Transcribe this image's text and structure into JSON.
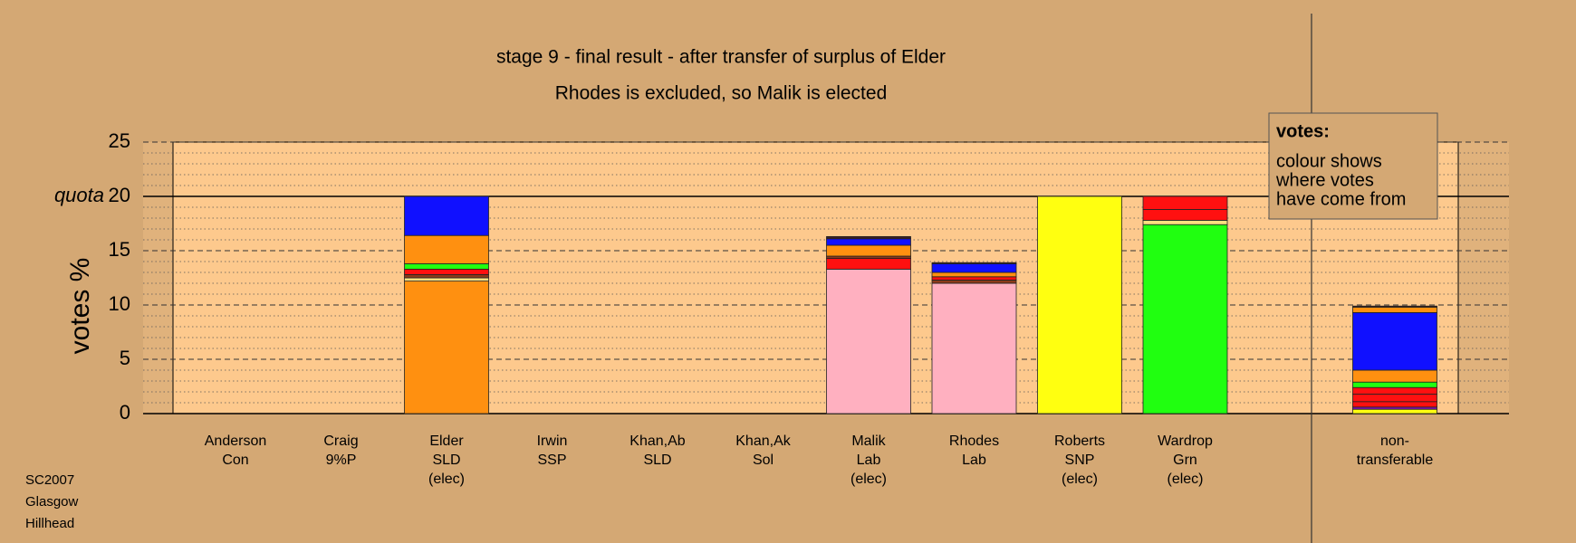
{
  "chart_data": {
    "type": "stacked-bar",
    "title": "stage 9 - final result - after transfer of surplus of Elder",
    "subtitle": "Rhodes is excluded, so Malik is elected",
    "y_label": "votes %",
    "quota_label": "quota",
    "quota": 20,
    "ylim": [
      0,
      25
    ],
    "yticks": [
      0,
      5,
      10,
      15,
      20,
      25
    ],
    "minor_yticks": [
      1,
      2,
      3,
      4,
      6,
      7,
      8,
      9,
      11,
      12,
      13,
      14,
      16,
      17,
      18,
      19,
      21,
      22,
      23,
      24
    ],
    "footer": [
      "SC2007",
      "Glasgow",
      "Hillhead"
    ],
    "note": {
      "title": "votes:",
      "lines": [
        "colour shows",
        "where votes",
        "have come from"
      ]
    },
    "bars": [
      {
        "label": [
          "Anderson",
          "Con"
        ],
        "colors": [],
        "values": []
      },
      {
        "label": [
          "Craig",
          "9%P"
        ],
        "colors": [],
        "values": []
      },
      {
        "label": [
          "Elder",
          "SLD",
          "(elec)"
        ],
        "colors": [
          "#ff9010",
          "#ffe080",
          "#8b3a1a",
          "#ff1010",
          "#20ff10",
          "#ff9010",
          "#1010ff"
        ],
        "values": [
          12.2,
          0.3,
          0.3,
          0.5,
          0.5,
          2.6,
          3.6
        ]
      },
      {
        "label": [
          "Irwin",
          "SSP"
        ],
        "colors": [],
        "values": []
      },
      {
        "label": [
          "Khan,Ab",
          "SLD"
        ],
        "colors": [],
        "values": []
      },
      {
        "label": [
          "Khan,Ak",
          "Sol"
        ],
        "colors": [],
        "values": []
      },
      {
        "label": [
          "Malik",
          "Lab",
          "(elec)"
        ],
        "colors": [
          "#ffb0c0",
          "#ff1010",
          "#8b3a1a",
          "#ff9010",
          "#1010ff",
          "#402020"
        ],
        "values": [
          13.3,
          1.0,
          0.2,
          1.0,
          0.6,
          0.2
        ]
      },
      {
        "label": [
          "Rhodes",
          "Lab"
        ],
        "colors": [
          "#ffb0c0",
          "#8b3a1a",
          "#ff1010",
          "#ff9010",
          "#1010ff",
          "#402020"
        ],
        "values": [
          12.0,
          0.3,
          0.3,
          0.4,
          0.8,
          0.1
        ]
      },
      {
        "label": [
          "Roberts",
          "SNP",
          "(elec)"
        ],
        "colors": [
          "#ffff10"
        ],
        "values": [
          20
        ]
      },
      {
        "label": [
          "Wardrop",
          "Grn",
          "(elec)"
        ],
        "colors": [
          "#20ff10",
          "#ffe080",
          "#ff1010",
          "#ff1010"
        ],
        "values": [
          17.4,
          0.4,
          1.0,
          1.2
        ]
      }
    ],
    "nontransferable": {
      "label": [
        "non-",
        "transferable"
      ],
      "colors": [
        "#ffff10",
        "#8010c0",
        "#ff1010",
        "#ff1010",
        "#ff1010",
        "#20ff10",
        "#ff9010",
        "#1010ff",
        "#ff9010",
        "#402020"
      ],
      "values": [
        0.4,
        0.2,
        0.5,
        0.7,
        0.6,
        0.5,
        1.1,
        5.3,
        0.5,
        0.1
      ]
    }
  }
}
